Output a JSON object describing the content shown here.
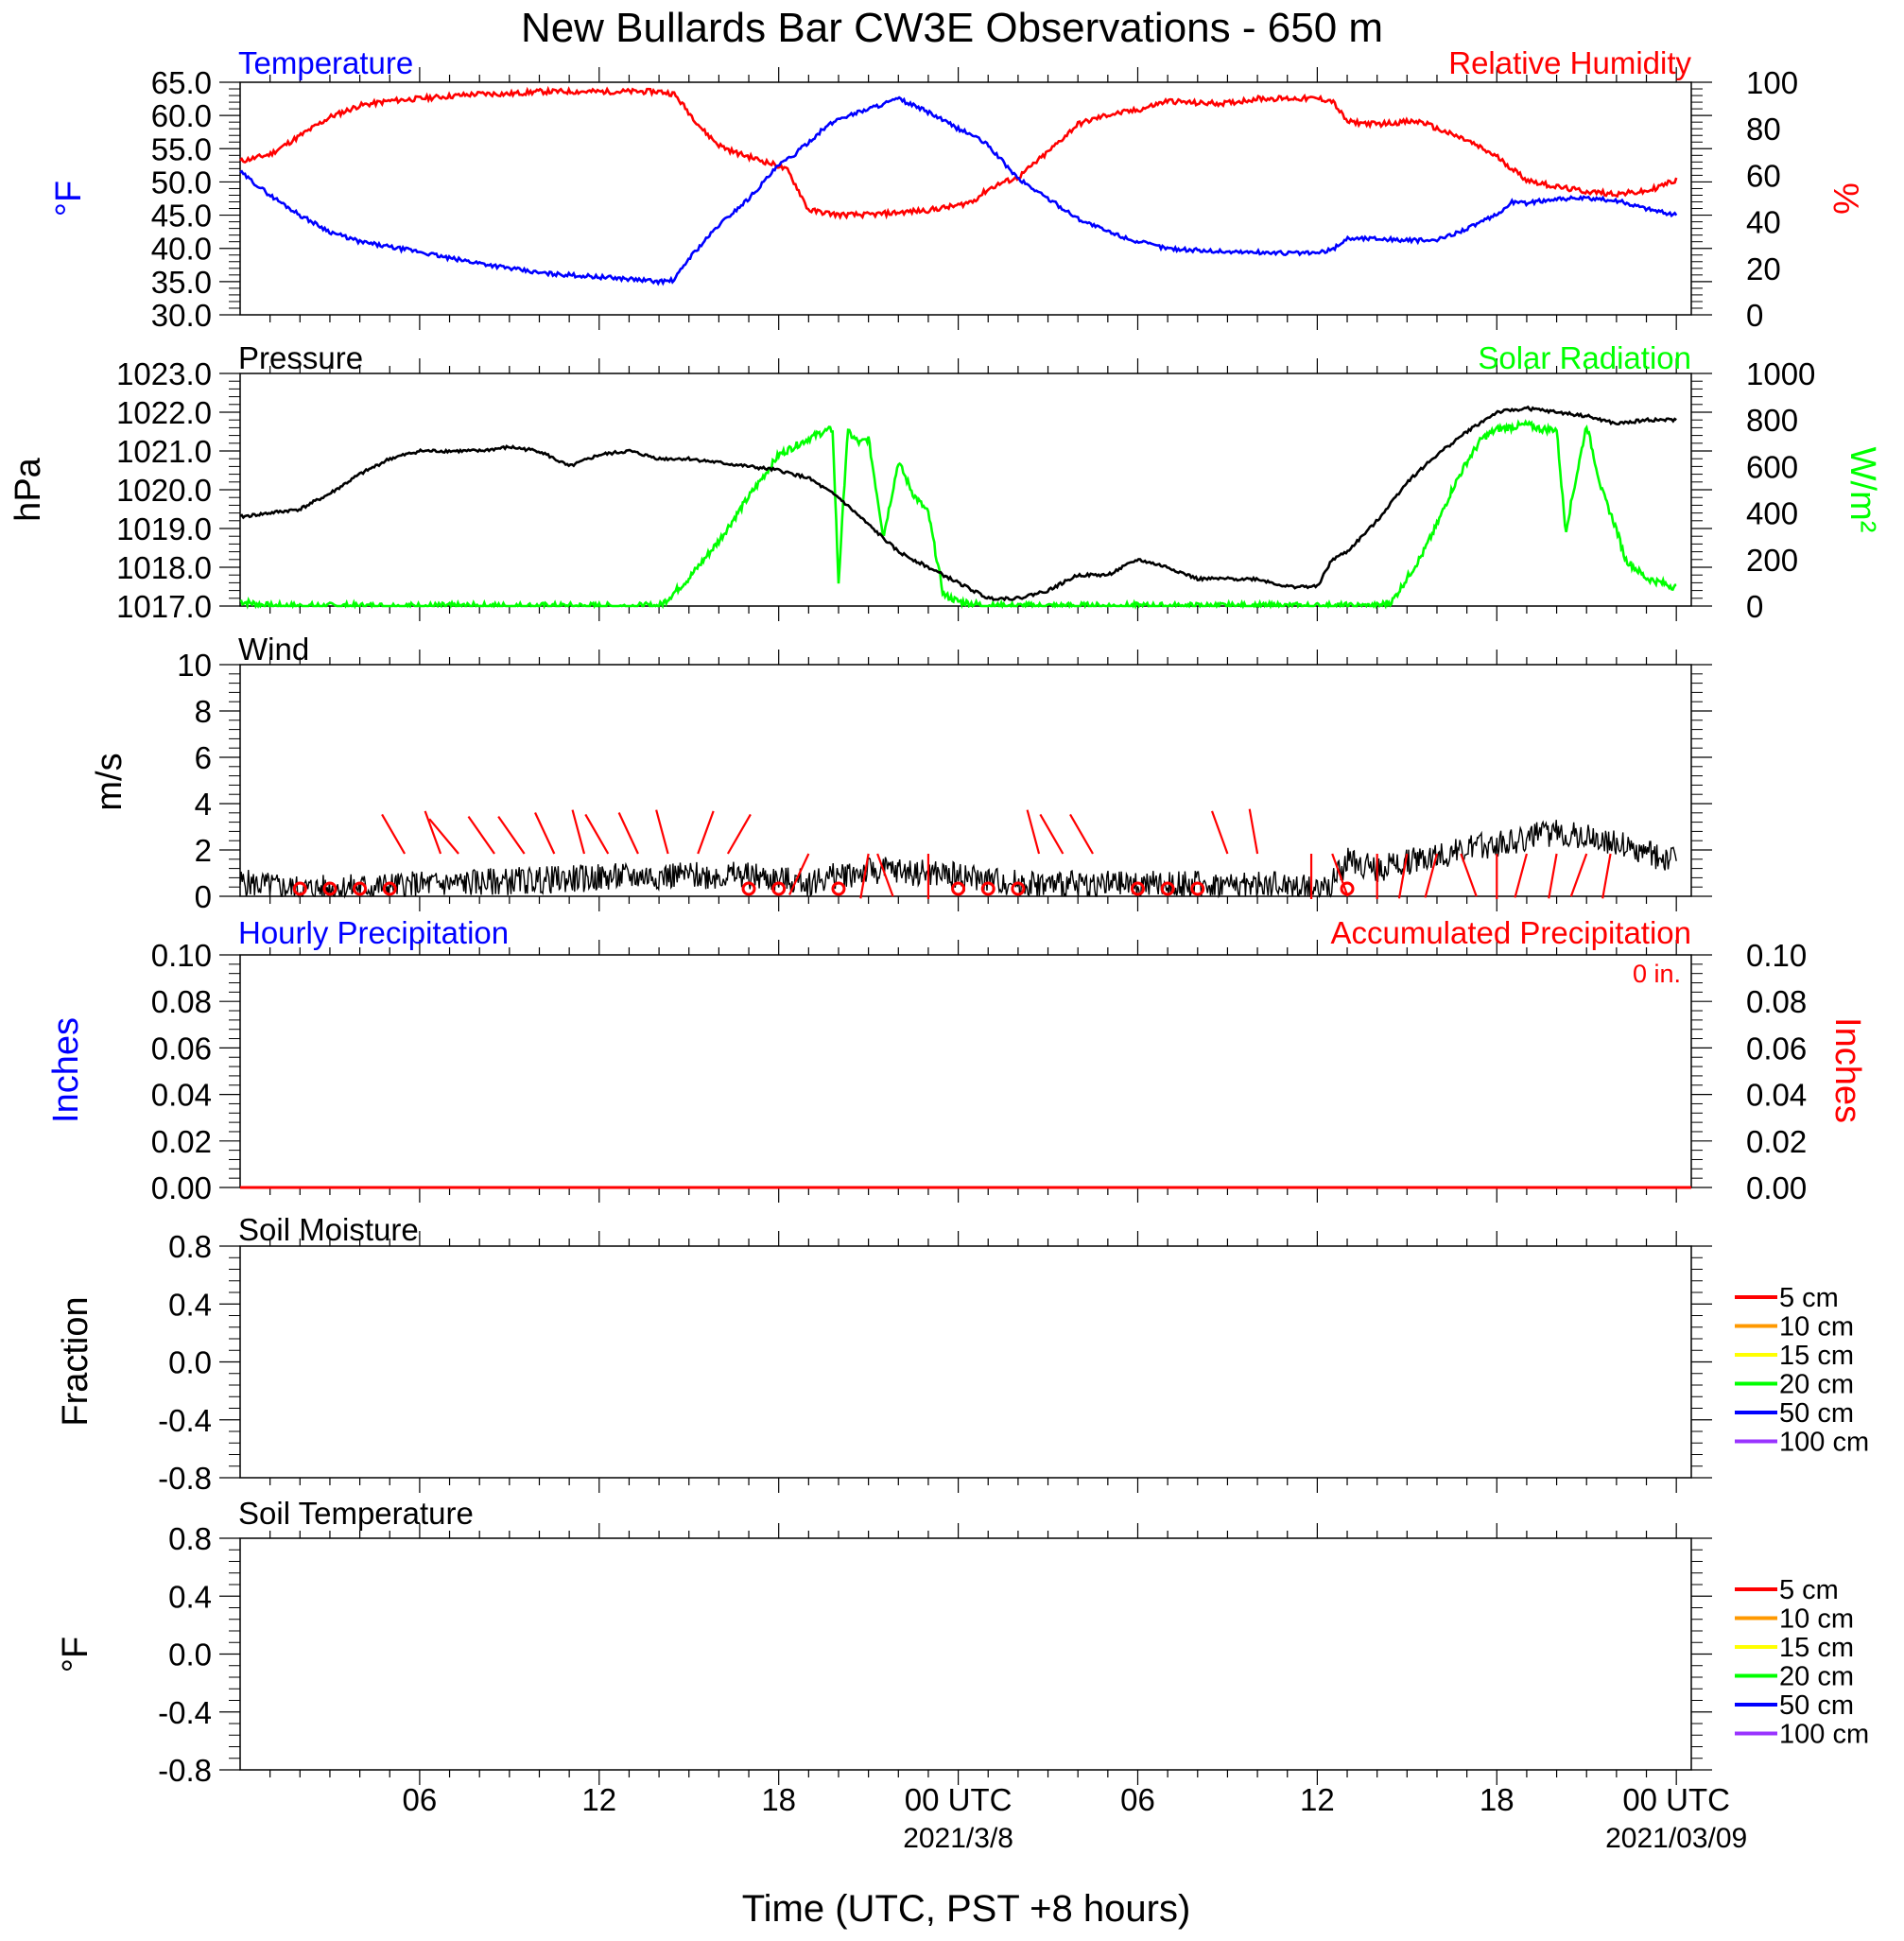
{
  "title": "New Bullards Bar CW3E Observations - 650 m",
  "xaxis": {
    "label": "Time (UTC, PST +8 hours)",
    "ticks": [
      {
        "hour": 6,
        "label": "06"
      },
      {
        "hour": 12,
        "label": "12"
      },
      {
        "hour": 18,
        "label": "18"
      },
      {
        "hour": 24,
        "label": "00 UTC"
      },
      {
        "hour": 30,
        "label": "06"
      },
      {
        "hour": 36,
        "label": "12"
      },
      {
        "hour": 42,
        "label": "18"
      },
      {
        "hour": 48,
        "label": "00 UTC"
      }
    ],
    "dates": [
      {
        "hour": 24,
        "label": "2021/3/8"
      },
      {
        "hour": 48,
        "label": "2021/03/09"
      }
    ]
  },
  "colors": {
    "temperature": "#0000ff",
    "humidity": "#ff0000",
    "pressure": "#000000",
    "solar": "#00ff00",
    "wind_barb": "#ff0000",
    "precip": "#ff0000"
  },
  "panels": {
    "temperature": {
      "title_left": "Temperature",
      "title_right": "Relative Humidity",
      "ylabel_left": "°F",
      "ylabel_right": "%",
      "left_ticks": [
        "65.0",
        "60.0",
        "55.0",
        "50.0",
        "45.0",
        "40.0",
        "35.0",
        "30.0"
      ],
      "right_ticks": [
        "100",
        "80",
        "60",
        "40",
        "20",
        "0"
      ]
    },
    "pressure": {
      "title_left": "Pressure",
      "title_right": "Solar Radiation",
      "ylabel_left": "hPa",
      "ylabel_right": "W/m²",
      "left_ticks": [
        "1023.0",
        "1022.0",
        "1021.0",
        "1020.0",
        "1019.0",
        "1018.0",
        "1017.0"
      ],
      "right_ticks": [
        "1000",
        "800",
        "600",
        "400",
        "200",
        "0"
      ]
    },
    "wind": {
      "title_left": "Wind",
      "ylabel_left": "m/s",
      "left_ticks": [
        "10",
        "8",
        "6",
        "4",
        "2",
        "0"
      ]
    },
    "precip": {
      "title_left": "Hourly Precipitation",
      "title_right": "Accumulated Precipitation",
      "accum_note": "0 in.",
      "ylabel_left": "Inches",
      "ylabel_right": "Inches",
      "left_ticks": [
        "0.10",
        "0.08",
        "0.06",
        "0.04",
        "0.02",
        "0.00"
      ],
      "right_ticks": [
        "0.10",
        "0.08",
        "0.06",
        "0.04",
        "0.02",
        "0.00"
      ]
    },
    "soil_moisture": {
      "title_left": "Soil Moisture",
      "ylabel_left": "Fraction",
      "left_ticks": [
        "0.8",
        "0.4",
        "0.0",
        "-0.4",
        "-0.8"
      ],
      "legend": [
        {
          "label": "5 cm",
          "color": "#ff0000"
        },
        {
          "label": "10 cm",
          "color": "#ff9900"
        },
        {
          "label": "15 cm",
          "color": "#ffff00"
        },
        {
          "label": "20 cm",
          "color": "#00ff00"
        },
        {
          "label": "50 cm",
          "color": "#0000ff"
        },
        {
          "label": "100 cm",
          "color": "#9933ff"
        }
      ]
    },
    "soil_temperature": {
      "title_left": "Soil Temperature",
      "ylabel_left": "°F",
      "left_ticks": [
        "0.8",
        "0.4",
        "0.0",
        "-0.4",
        "-0.8"
      ],
      "legend": [
        {
          "label": "5 cm",
          "color": "#ff0000"
        },
        {
          "label": "10 cm",
          "color": "#ff9900"
        },
        {
          "label": "15 cm",
          "color": "#ffff00"
        },
        {
          "label": "20 cm",
          "color": "#00ff00"
        },
        {
          "label": "50 cm",
          "color": "#0000ff"
        },
        {
          "label": "100 cm",
          "color": "#9933ff"
        }
      ]
    }
  },
  "chart_data": [
    {
      "type": "line",
      "title": "Temperature / Relative Humidity",
      "x_unit": "hours since 2021-03-07 00 UTC",
      "series": [
        {
          "name": "Temperature",
          "axis": "left",
          "unit": "°F",
          "x": [
            0,
            1,
            2,
            3,
            4,
            5,
            6,
            7,
            8,
            9,
            10,
            11,
            12,
            13,
            14,
            14.5,
            15,
            15.5,
            16,
            16.5,
            17,
            17.5,
            18,
            18.5,
            19,
            19.5,
            20,
            21,
            22,
            23,
            24,
            24.5,
            25,
            25.5,
            26,
            27,
            28,
            29,
            30,
            31,
            32,
            33,
            34,
            35,
            36,
            36.5,
            37,
            38,
            39,
            40,
            41,
            42,
            42.5,
            43,
            44,
            45,
            46,
            47,
            48
          ],
          "y": [
            51.5,
            48.0,
            45.0,
            42.5,
            41.0,
            40.2,
            39.5,
            38.5,
            37.8,
            37.0,
            36.3,
            36.0,
            35.7,
            35.4,
            35.0,
            35.2,
            38.5,
            41.0,
            43.5,
            45.5,
            47.5,
            50.0,
            52.5,
            54.0,
            56.0,
            58.0,
            59.5,
            61.0,
            62.5,
            60.5,
            58.0,
            57.0,
            55.5,
            53.0,
            50.5,
            47.5,
            44.5,
            42.5,
            41.0,
            40.0,
            39.7,
            39.5,
            39.4,
            39.3,
            39.3,
            39.8,
            41.5,
            41.5,
            41.2,
            41.2,
            43.0,
            45.0,
            47.0,
            46.8,
            47.5,
            47.5,
            47.2,
            46.0,
            45.0
          ]
        },
        {
          "name": "Relative Humidity",
          "axis": "right",
          "unit": "%",
          "x": [
            0,
            1,
            2,
            3,
            4,
            5,
            6,
            7,
            8,
            9,
            10,
            11,
            12,
            13,
            14,
            14.5,
            15,
            15.5,
            16,
            16.5,
            17,
            17.5,
            18,
            18.3,
            18.6,
            19,
            20,
            21,
            22,
            23,
            24,
            24.5,
            25,
            25.5,
            26,
            27,
            28,
            29,
            30,
            31,
            32,
            33,
            34,
            35,
            36,
            36.5,
            37,
            38,
            39,
            39.5,
            40,
            41,
            42,
            43,
            44,
            45,
            46,
            47,
            48
          ],
          "y": [
            66,
            69,
            77,
            85,
            90,
            92,
            93,
            94,
            95,
            95,
            96,
            96,
            96,
            96,
            96,
            95,
            87,
            79,
            73,
            70,
            68,
            66,
            64,
            62,
            55,
            45,
            43,
            43,
            44,
            45,
            47,
            49,
            54,
            57,
            59,
            70,
            82,
            86,
            88,
            92,
            91,
            91,
            93,
            93,
            93,
            92,
            83,
            82,
            83,
            83,
            80,
            75,
            68,
            58,
            55,
            53,
            52,
            53,
            58
          ]
        }
      ]
    },
    {
      "type": "line",
      "title": "Pressure / Solar Radiation",
      "x_unit": "hours since 2021-03-07 00 UTC",
      "series": [
        {
          "name": "Pressure",
          "axis": "left",
          "unit": "hPa",
          "x": [
            0,
            2,
            3,
            4,
            5,
            6,
            7,
            8,
            9,
            10,
            11,
            12,
            13,
            14,
            15,
            16,
            17,
            18,
            19,
            20,
            21,
            22,
            23,
            24,
            25,
            26,
            27,
            28,
            29,
            30,
            31,
            32,
            33,
            34,
            35,
            36,
            36.5,
            37,
            38,
            39,
            40,
            41,
            42,
            43,
            44,
            45,
            46,
            47,
            48
          ],
          "y": [
            1019.3,
            1019.5,
            1019.9,
            1020.4,
            1020.8,
            1021.0,
            1021.0,
            1021.0,
            1021.1,
            1021.0,
            1020.6,
            1020.9,
            1021.0,
            1020.8,
            1020.8,
            1020.7,
            1020.6,
            1020.5,
            1020.3,
            1019.8,
            1019.1,
            1018.4,
            1018.0,
            1017.6,
            1017.2,
            1017.2,
            1017.4,
            1017.8,
            1017.8,
            1018.2,
            1018.0,
            1017.7,
            1017.7,
            1017.7,
            1017.5,
            1017.5,
            1018.2,
            1018.4,
            1019.2,
            1020.2,
            1020.9,
            1021.5,
            1022.0,
            1022.1,
            1022.0,
            1021.9,
            1021.7,
            1021.8,
            1021.8
          ]
        },
        {
          "name": "Solar Radiation",
          "axis": "right",
          "unit": "W/m²",
          "x": [
            0,
            1,
            2,
            13,
            14,
            14.2,
            15,
            16,
            17,
            18,
            19,
            19.5,
            19.8,
            20,
            20.3,
            20.7,
            21,
            21.5,
            22,
            22.5,
            23,
            23.5,
            24,
            24.5,
            25,
            25.5,
            30,
            35,
            36,
            37,
            38,
            38.5,
            39,
            39.5,
            40,
            40.5,
            41,
            41.5,
            42,
            42.5,
            43,
            43.5,
            44,
            44.3,
            45,
            45.5,
            46,
            46.3,
            47,
            48
          ],
          "y": [
            20,
            0,
            0,
            0,
            0,
            20,
            120,
            280,
            470,
            650,
            720,
            750,
            760,
            100,
            750,
            700,
            720,
            300,
            620,
            480,
            400,
            50,
            20,
            10,
            0,
            0,
            0,
            0,
            0,
            0,
            0,
            20,
            120,
            220,
            350,
            500,
            620,
            720,
            760,
            770,
            780,
            760,
            760,
            320,
            780,
            500,
            330,
            200,
            120,
            80
          ]
        }
      ]
    },
    {
      "type": "line",
      "title": "Wind",
      "x_unit": "hours since 2021-03-07 00 UTC",
      "series": [
        {
          "name": "Wind speed",
          "unit": "m/s",
          "x": [
            0,
            2,
            4,
            6,
            8,
            10,
            12,
            14,
            16,
            17,
            18,
            19,
            20,
            21,
            22,
            23,
            24,
            25,
            26,
            27,
            28,
            30,
            32,
            34,
            35,
            36,
            36.5,
            37,
            38,
            39,
            40,
            41,
            42,
            43,
            44,
            45,
            46,
            47,
            48
          ],
          "y": [
            0.6,
            0.3,
            0.4,
            0.5,
            0.6,
            0.7,
            0.8,
            0.9,
            0.9,
            0.9,
            0.7,
            0.6,
            0.9,
            1.1,
            1.1,
            1.0,
            0.9,
            0.7,
            0.6,
            0.5,
            0.5,
            0.5,
            0.5,
            0.5,
            0.5,
            0.3,
            0.6,
            1.5,
            1.2,
            1.5,
            1.8,
            2.0,
            2.3,
            2.5,
            2.8,
            2.6,
            2.3,
            1.8,
            1.6
          ]
        }
      ]
    },
    {
      "type": "line",
      "title": "Hourly Precipitation / Accumulated Precipitation",
      "series": [
        {
          "name": "Hourly Precipitation",
          "unit": "in",
          "x": [
            0,
            48
          ],
          "y": [
            0,
            0
          ]
        },
        {
          "name": "Accumulated Precipitation",
          "unit": "in",
          "x": [
            0,
            48
          ],
          "y": [
            0,
            0
          ]
        }
      ]
    }
  ]
}
